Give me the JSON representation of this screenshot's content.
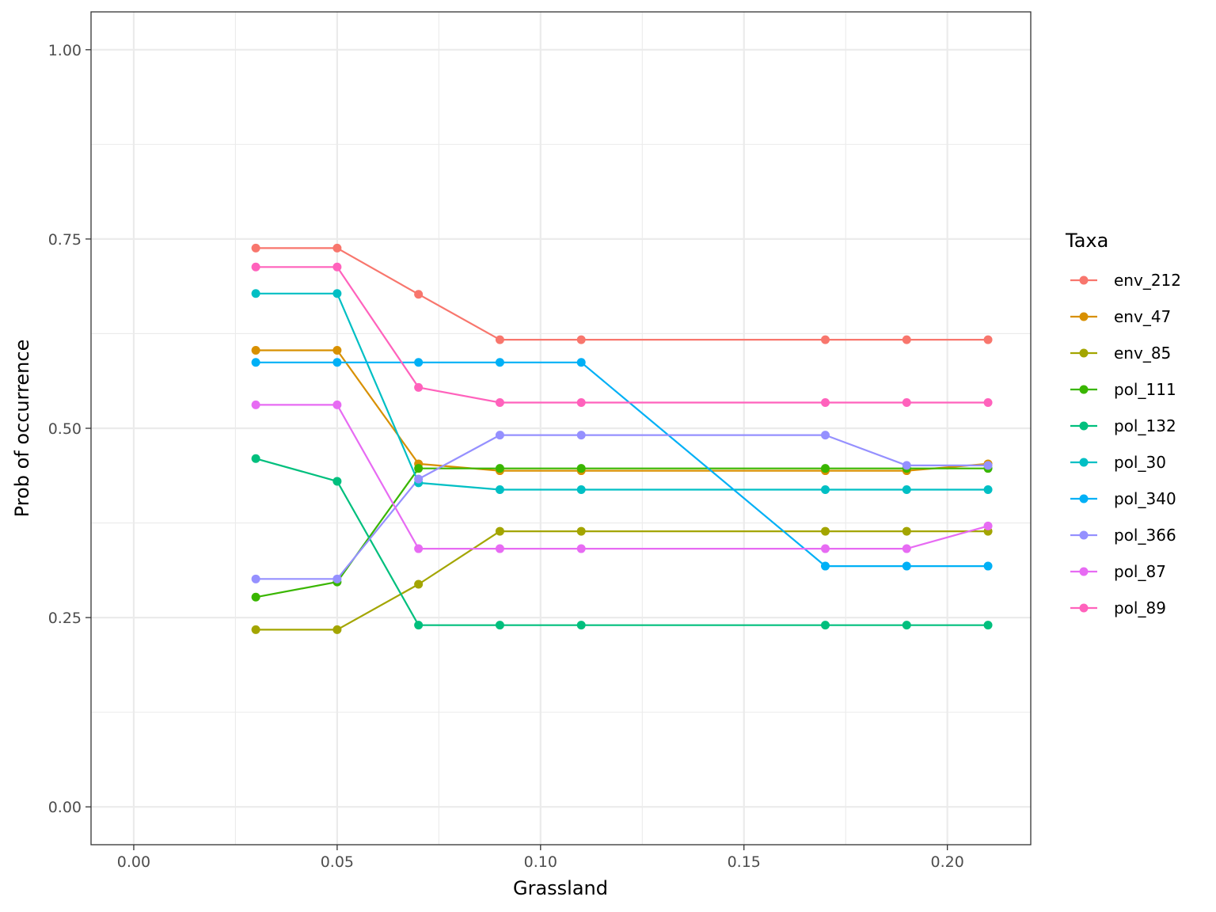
{
  "chart_data": {
    "type": "line",
    "xlabel": "Grassland",
    "ylabel": "Prob of occurrence",
    "xlim": [
      -0.0105,
      0.2205
    ],
    "ylim": [
      -0.05,
      1.05
    ],
    "x_ticks": [
      0.0,
      0.05,
      0.1,
      0.15,
      0.2
    ],
    "x_tick_labels": [
      "0.00",
      "0.05",
      "0.10",
      "0.15",
      "0.20"
    ],
    "y_ticks": [
      0.0,
      0.25,
      0.5,
      0.75,
      1.0
    ],
    "y_tick_labels": [
      "0.00",
      "0.25",
      "0.50",
      "0.75",
      "1.00"
    ],
    "grid": true,
    "legend_position": "right",
    "legend_title": "Taxa",
    "x": [
      0.03,
      0.05,
      0.07,
      0.09,
      0.11,
      0.17,
      0.19,
      0.21
    ],
    "series": [
      {
        "name": "env_212",
        "color": "#F8766D",
        "values": [
          0.738,
          0.738,
          0.677,
          0.617,
          0.617,
          0.617,
          0.617,
          0.617
        ]
      },
      {
        "name": "env_47",
        "color": "#D89000",
        "values": [
          0.603,
          0.603,
          0.453,
          0.444,
          0.444,
          0.444,
          0.444,
          0.453
        ]
      },
      {
        "name": "env_85",
        "color": "#A3A500",
        "values": [
          0.234,
          0.234,
          0.294,
          0.364,
          0.364,
          0.364,
          0.364,
          0.364
        ]
      },
      {
        "name": "pol_111",
        "color": "#39B600",
        "values": [
          0.277,
          0.297,
          0.447,
          0.447,
          0.447,
          0.447,
          0.447,
          0.447
        ]
      },
      {
        "name": "pol_132",
        "color": "#00BF7D",
        "values": [
          0.46,
          0.43,
          0.24,
          0.24,
          0.24,
          0.24,
          0.24,
          0.24
        ]
      },
      {
        "name": "pol_30",
        "color": "#00BFC4",
        "values": [
          0.678,
          0.678,
          0.428,
          0.419,
          0.419,
          0.419,
          0.419,
          0.419
        ]
      },
      {
        "name": "pol_340",
        "color": "#00B0F6",
        "values": [
          0.587,
          0.587,
          0.587,
          0.587,
          0.587,
          0.318,
          0.318,
          0.318
        ]
      },
      {
        "name": "pol_366",
        "color": "#9590FF",
        "values": [
          0.301,
          0.301,
          0.433,
          0.491,
          0.491,
          0.491,
          0.451,
          0.451
        ]
      },
      {
        "name": "pol_87",
        "color": "#E76BF3",
        "values": [
          0.531,
          0.531,
          0.341,
          0.341,
          0.341,
          0.341,
          0.341,
          0.371
        ]
      },
      {
        "name": "pol_89",
        "color": "#FF62BC",
        "values": [
          0.713,
          0.713,
          0.554,
          0.534,
          0.534,
          0.534,
          0.534,
          0.534
        ]
      }
    ]
  }
}
